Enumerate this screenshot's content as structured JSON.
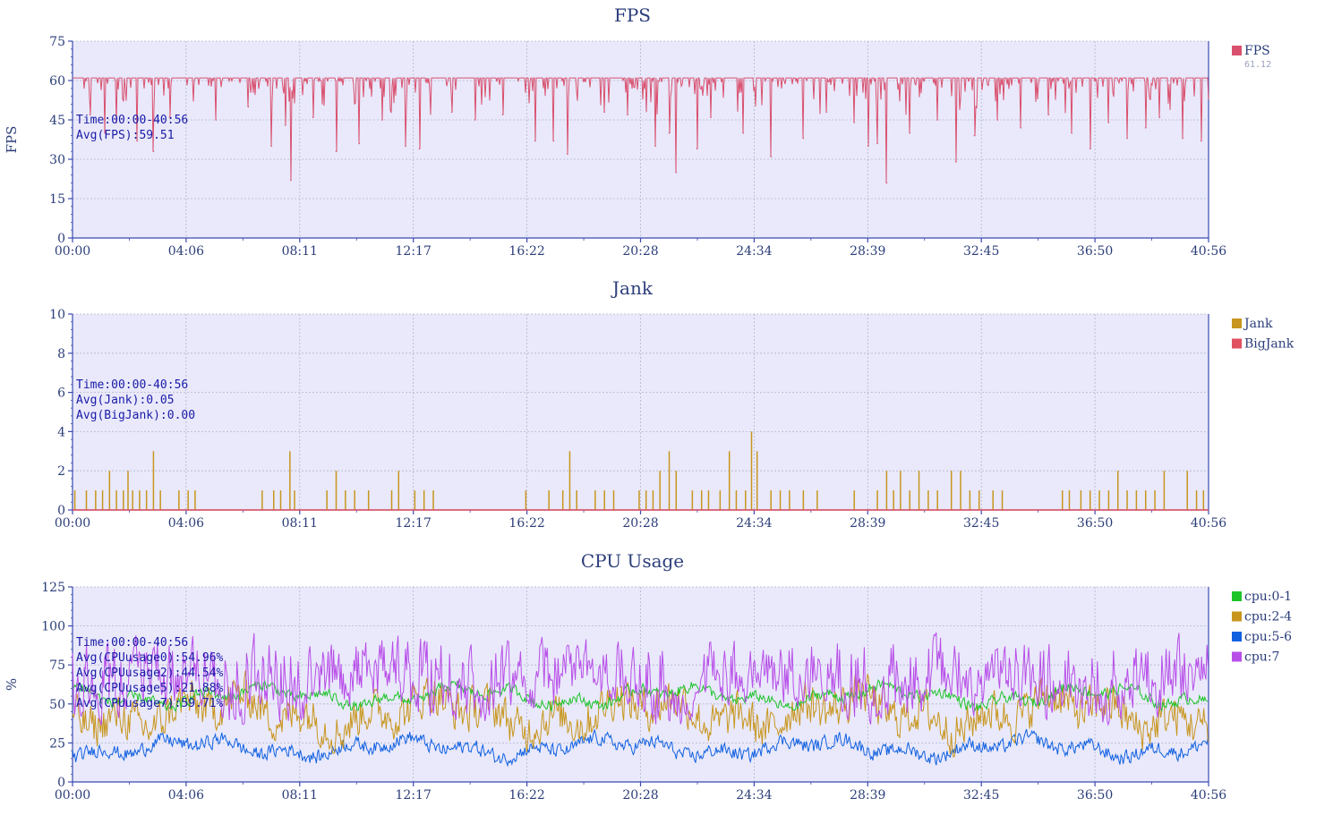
{
  "chart_data": [
    {
      "type": "line",
      "title": "FPS",
      "ylabel": "FPS",
      "xlabel": "",
      "x_range": [
        "00:00",
        "40:56"
      ],
      "x_ticks": [
        "00:00",
        "04:06",
        "08:11",
        "12:17",
        "16:22",
        "20:28",
        "24:34",
        "28:39",
        "32:45",
        "36:50",
        "40:56"
      ],
      "ylim": [
        0,
        75
      ],
      "y_ticks": [
        "0",
        "15",
        "30",
        "45",
        "60",
        "75"
      ],
      "grid": true,
      "legend_position": "right",
      "annotations": [
        "Time:00:00-40:56",
        "Avg(FPS):59.51"
      ],
      "series": [
        {
          "name": "FPS",
          "legend_value": "61.12",
          "color": "#d9506e",
          "baseline": 61,
          "dips": [
            {
              "t": "00:38",
              "v": 47
            },
            {
              "t": "01:10",
              "v": 40
            },
            {
              "t": "01:35",
              "v": 44
            },
            {
              "t": "02:20",
              "v": 37
            },
            {
              "t": "02:55",
              "v": 33
            },
            {
              "t": "03:30",
              "v": 46
            },
            {
              "t": "05:10",
              "v": 45
            },
            {
              "t": "06:20",
              "v": 50
            },
            {
              "t": "07:10",
              "v": 35
            },
            {
              "t": "07:40",
              "v": 43
            },
            {
              "t": "07:52",
              "v": 22
            },
            {
              "t": "08:40",
              "v": 46
            },
            {
              "t": "09:30",
              "v": 33
            },
            {
              "t": "10:20",
              "v": 36
            },
            {
              "t": "11:10",
              "v": 45
            },
            {
              "t": "12:00",
              "v": 35
            },
            {
              "t": "12:30",
              "v": 34
            },
            {
              "t": "13:40",
              "v": 48
            },
            {
              "t": "14:30",
              "v": 45
            },
            {
              "t": "15:30",
              "v": 47
            },
            {
              "t": "16:40",
              "v": 37
            },
            {
              "t": "17:20",
              "v": 37
            },
            {
              "t": "17:50",
              "v": 32
            },
            {
              "t": "19:10",
              "v": 48
            },
            {
              "t": "20:00",
              "v": 47
            },
            {
              "t": "21:00",
              "v": 35
            },
            {
              "t": "21:30",
              "v": 40
            },
            {
              "t": "21:45",
              "v": 25
            },
            {
              "t": "22:30",
              "v": 34
            },
            {
              "t": "23:00",
              "v": 46
            },
            {
              "t": "24:10",
              "v": 40
            },
            {
              "t": "25:10",
              "v": 31
            },
            {
              "t": "26:20",
              "v": 38
            },
            {
              "t": "27:10",
              "v": 48
            },
            {
              "t": "28:10",
              "v": 44
            },
            {
              "t": "28:40",
              "v": 35
            },
            {
              "t": "29:00",
              "v": 36
            },
            {
              "t": "29:20",
              "v": 21
            },
            {
              "t": "30:10",
              "v": 40
            },
            {
              "t": "31:10",
              "v": 45
            },
            {
              "t": "31:50",
              "v": 29
            },
            {
              "t": "32:30",
              "v": 39
            },
            {
              "t": "33:20",
              "v": 45
            },
            {
              "t": "34:10",
              "v": 42
            },
            {
              "t": "35:10",
              "v": 47
            },
            {
              "t": "36:00",
              "v": 40
            },
            {
              "t": "36:40",
              "v": 34
            },
            {
              "t": "37:20",
              "v": 44
            },
            {
              "t": "38:00",
              "v": 38
            },
            {
              "t": "38:40",
              "v": 42
            },
            {
              "t": "39:10",
              "v": 46
            },
            {
              "t": "40:00",
              "v": 38
            },
            {
              "t": "40:40",
              "v": 37
            }
          ]
        }
      ]
    },
    {
      "type": "bar",
      "title": "Jank",
      "ylabel": "",
      "xlabel": "",
      "x_range": [
        "00:00",
        "40:56"
      ],
      "x_ticks": [
        "00:00",
        "04:06",
        "08:11",
        "12:17",
        "16:22",
        "20:28",
        "24:34",
        "28:39",
        "32:45",
        "36:50",
        "40:56"
      ],
      "ylim": [
        0,
        10
      ],
      "y_ticks": [
        "0",
        "2",
        "4",
        "6",
        "8",
        "10"
      ],
      "grid": true,
      "legend_position": "right",
      "annotations": [
        "Time:00:00-40:56",
        "Avg(Jank):0.05",
        "Avg(BigJank):0.00"
      ],
      "series": [
        {
          "name": "Jank",
          "color": "#c8961e",
          "points": [
            {
              "t": "00:05",
              "v": 1
            },
            {
              "t": "00:30",
              "v": 1
            },
            {
              "t": "00:50",
              "v": 1
            },
            {
              "t": "01:05",
              "v": 1
            },
            {
              "t": "01:20",
              "v": 2
            },
            {
              "t": "01:35",
              "v": 1
            },
            {
              "t": "01:50",
              "v": 1
            },
            {
              "t": "02:00",
              "v": 2
            },
            {
              "t": "02:10",
              "v": 1
            },
            {
              "t": "02:25",
              "v": 1
            },
            {
              "t": "02:40",
              "v": 1
            },
            {
              "t": "02:55",
              "v": 3
            },
            {
              "t": "03:10",
              "v": 1
            },
            {
              "t": "03:50",
              "v": 1
            },
            {
              "t": "04:10",
              "v": 1
            },
            {
              "t": "04:25",
              "v": 1
            },
            {
              "t": "06:50",
              "v": 1
            },
            {
              "t": "07:15",
              "v": 1
            },
            {
              "t": "07:30",
              "v": 1
            },
            {
              "t": "07:50",
              "v": 3
            },
            {
              "t": "08:00",
              "v": 1
            },
            {
              "t": "09:10",
              "v": 1
            },
            {
              "t": "09:30",
              "v": 2
            },
            {
              "t": "09:50",
              "v": 1
            },
            {
              "t": "10:10",
              "v": 1
            },
            {
              "t": "10:40",
              "v": 1
            },
            {
              "t": "11:30",
              "v": 1
            },
            {
              "t": "11:45",
              "v": 2
            },
            {
              "t": "12:20",
              "v": 1
            },
            {
              "t": "12:40",
              "v": 1
            },
            {
              "t": "13:00",
              "v": 1
            },
            {
              "t": "16:20",
              "v": 1
            },
            {
              "t": "17:10",
              "v": 1
            },
            {
              "t": "17:40",
              "v": 1
            },
            {
              "t": "17:55",
              "v": 3
            },
            {
              "t": "18:10",
              "v": 1
            },
            {
              "t": "18:50",
              "v": 1
            },
            {
              "t": "19:10",
              "v": 1
            },
            {
              "t": "19:30",
              "v": 1
            },
            {
              "t": "20:25",
              "v": 1
            },
            {
              "t": "20:40",
              "v": 1
            },
            {
              "t": "20:55",
              "v": 1
            },
            {
              "t": "21:10",
              "v": 2
            },
            {
              "t": "21:30",
              "v": 3
            },
            {
              "t": "21:45",
              "v": 2
            },
            {
              "t": "22:20",
              "v": 1
            },
            {
              "t": "22:40",
              "v": 1
            },
            {
              "t": "22:55",
              "v": 1
            },
            {
              "t": "23:20",
              "v": 1
            },
            {
              "t": "23:40",
              "v": 3
            },
            {
              "t": "23:55",
              "v": 1
            },
            {
              "t": "24:15",
              "v": 1
            },
            {
              "t": "24:28",
              "v": 4
            },
            {
              "t": "24:40",
              "v": 3
            },
            {
              "t": "25:10",
              "v": 1
            },
            {
              "t": "25:30",
              "v": 1
            },
            {
              "t": "25:50",
              "v": 1
            },
            {
              "t": "26:20",
              "v": 1
            },
            {
              "t": "26:50",
              "v": 1
            },
            {
              "t": "28:10",
              "v": 1
            },
            {
              "t": "29:00",
              "v": 1
            },
            {
              "t": "29:20",
              "v": 2
            },
            {
              "t": "29:35",
              "v": 1
            },
            {
              "t": "29:50",
              "v": 2
            },
            {
              "t": "30:10",
              "v": 1
            },
            {
              "t": "30:30",
              "v": 2
            },
            {
              "t": "30:50",
              "v": 1
            },
            {
              "t": "31:10",
              "v": 1
            },
            {
              "t": "31:40",
              "v": 2
            },
            {
              "t": "32:00",
              "v": 2
            },
            {
              "t": "32:20",
              "v": 1
            },
            {
              "t": "32:40",
              "v": 1
            },
            {
              "t": "33:10",
              "v": 1
            },
            {
              "t": "33:30",
              "v": 1
            },
            {
              "t": "35:40",
              "v": 1
            },
            {
              "t": "35:55",
              "v": 1
            },
            {
              "t": "36:20",
              "v": 1
            },
            {
              "t": "36:40",
              "v": 1
            },
            {
              "t": "37:00",
              "v": 1
            },
            {
              "t": "37:20",
              "v": 1
            },
            {
              "t": "37:40",
              "v": 2
            },
            {
              "t": "38:00",
              "v": 1
            },
            {
              "t": "38:20",
              "v": 1
            },
            {
              "t": "38:40",
              "v": 1
            },
            {
              "t": "39:00",
              "v": 1
            },
            {
              "t": "39:20",
              "v": 2
            },
            {
              "t": "40:10",
              "v": 2
            },
            {
              "t": "40:30",
              "v": 1
            },
            {
              "t": "40:45",
              "v": 1
            }
          ]
        },
        {
          "name": "BigJank",
          "color": "#e05060",
          "constant": 0
        }
      ]
    },
    {
      "type": "line",
      "title": "CPU Usage",
      "ylabel": "%",
      "xlabel": "",
      "x_range": [
        "00:00",
        "40:56"
      ],
      "x_ticks": [
        "00:00",
        "04:06",
        "08:11",
        "12:17",
        "16:22",
        "20:28",
        "24:34",
        "28:39",
        "32:45",
        "36:50",
        "40:56"
      ],
      "ylim": [
        0,
        125
      ],
      "y_ticks": [
        "0",
        "25",
        "50",
        "75",
        "100",
        "125"
      ],
      "grid": true,
      "legend_position": "right",
      "annotations": [
        "Time:00:00-40:56",
        "Avg(CPUusage0):54.96%",
        "Avg(CPUusage2):44.54%",
        "Avg(CPUusage5):21.88%",
        "Avg(CPUusage7):59.71%"
      ],
      "series": [
        {
          "name": "cpu:0-1",
          "color": "#1ec42a",
          "average": 54.96,
          "range": [
            35,
            85
          ]
        },
        {
          "name": "cpu:2-4",
          "color": "#c8961e",
          "average": 44.54,
          "range": [
            10,
            95
          ]
        },
        {
          "name": "cpu:5-6",
          "color": "#1060e0",
          "average": 21.88,
          "range": [
            5,
            50
          ]
        },
        {
          "name": "cpu:7",
          "color": "#b84ee8",
          "average": 59.71,
          "range": [
            25,
            100
          ]
        }
      ]
    }
  ]
}
